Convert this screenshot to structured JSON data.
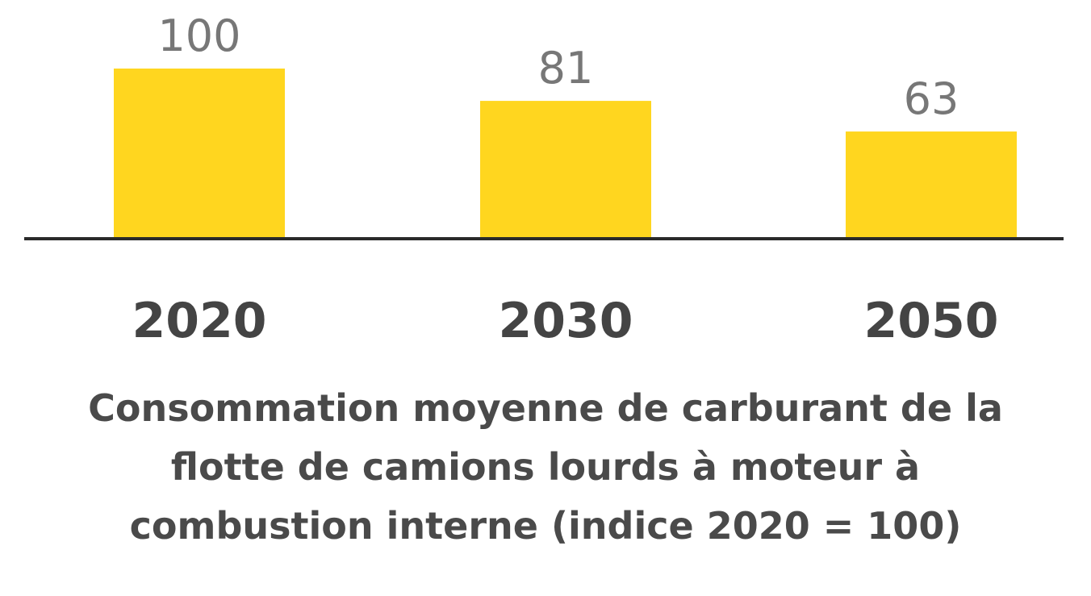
{
  "chart_data": {
    "type": "bar",
    "categories": [
      "2020",
      "2030",
      "2050"
    ],
    "values": [
      100,
      81,
      63
    ],
    "data_labels": [
      "100",
      "81",
      "63"
    ],
    "title_lines": [
      "Consommation moyenne de carburant de la",
      "flotte de camions lourds à moteur à",
      "combustion interne (indice 2020 = 100)"
    ],
    "xlabel": "",
    "ylabel": "",
    "ylim": [
      0,
      100
    ],
    "grid": false,
    "colors": {
      "bar": "#FFD61F",
      "axis": "#2a2a2a",
      "label": "#444444",
      "value_label": "#777777"
    }
  }
}
